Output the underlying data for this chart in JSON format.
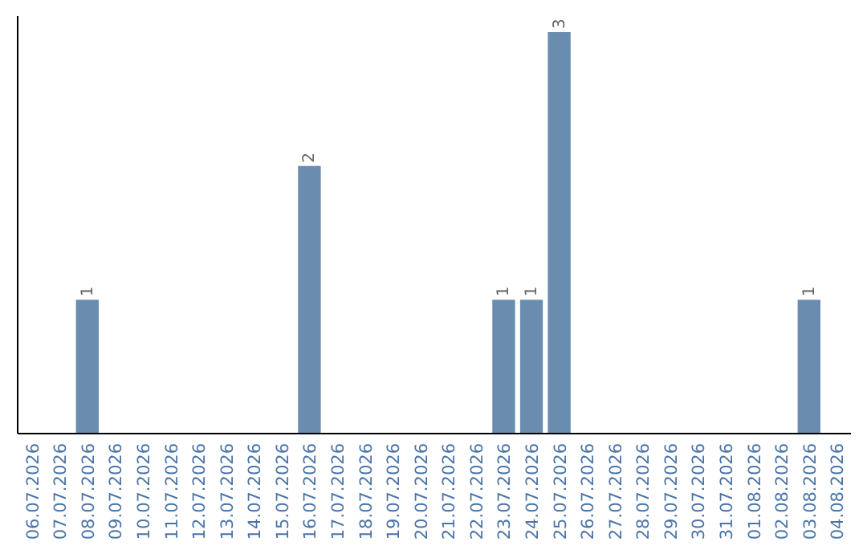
{
  "chart_data": {
    "type": "bar",
    "categories": [
      "06.07.2026",
      "07.07.2026",
      "08.07.2026",
      "09.07.2026",
      "10.07.2026",
      "11.07.2026",
      "12.07.2026",
      "13.07.2026",
      "14.07.2026",
      "15.07.2026",
      "16.07.2026",
      "17.07.2026",
      "18.07.2026",
      "19.07.2026",
      "20.07.2026",
      "21.07.2026",
      "22.07.2026",
      "23.07.2026",
      "24.07.2026",
      "25.07.2026",
      "26.07.2026",
      "27.07.2026",
      "28.07.2026",
      "29.07.2026",
      "30.07.2026",
      "31.07.2026",
      "01.08.2026",
      "02.08.2026",
      "03.08.2026",
      "04.08.2026"
    ],
    "values": [
      0,
      0,
      1,
      0,
      0,
      0,
      0,
      0,
      0,
      0,
      2,
      0,
      0,
      0,
      0,
      0,
      0,
      1,
      1,
      3,
      0,
      0,
      0,
      0,
      0,
      0,
      0,
      0,
      1,
      0
    ],
    "value_labels": [
      null,
      null,
      "1",
      null,
      null,
      null,
      null,
      null,
      null,
      null,
      "2",
      null,
      null,
      null,
      null,
      null,
      null,
      "1",
      "1",
      "3",
      null,
      null,
      null,
      null,
      null,
      null,
      null,
      null,
      "1",
      null
    ],
    "color": "#6a8caf"
  }
}
